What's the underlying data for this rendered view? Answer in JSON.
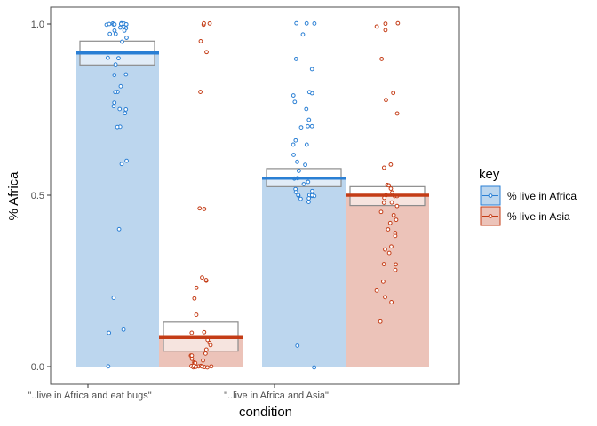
{
  "chart_data": {
    "type": "bar",
    "xlabel": "condition",
    "ylabel": "% Africa",
    "ylim": [
      0,
      1.03
    ],
    "yticks": [
      {
        "value": 0.0,
        "label": "0.0"
      },
      {
        "value": 0.5,
        "label": "0.5"
      },
      {
        "value": 1.0,
        "label": "1.0"
      }
    ],
    "categories": [
      "\"..live in Africa and eat bugs\"",
      "\"..live in Africa and Asia\""
    ],
    "legend": {
      "title": "key",
      "position": "right",
      "entries": [
        "% live in Africa",
        "% live in Asia"
      ]
    },
    "grid": false,
    "series": [
      {
        "name": "% live in Africa",
        "color": "#2a7fd4",
        "fill": "#bcd6ee",
        "values": [
          0.915,
          0.55
        ],
        "ci": [
          [
            0.88,
            0.95
          ],
          [
            0.525,
            0.578
          ]
        ],
        "points": [
          [
            1.0,
            1.0,
            1.0,
            1.0,
            1.0,
            1.0,
            1.0,
            1.0,
            1.0,
            1.0,
            1.0,
            1.0,
            1.0,
            0.99,
            0.99,
            0.98,
            0.98,
            0.97,
            0.97,
            0.96,
            0.95,
            0.9,
            0.9,
            0.88,
            0.85,
            0.85,
            0.82,
            0.8,
            0.8,
            0.77,
            0.76,
            0.75,
            0.75,
            0.74,
            0.7,
            0.7,
            0.6,
            0.59,
            0.4,
            0.2,
            0.11,
            0.1,
            0.0
          ],
          [
            1.0,
            1.0,
            1.0,
            0.97,
            0.9,
            0.87,
            0.8,
            0.8,
            0.79,
            0.77,
            0.75,
            0.72,
            0.7,
            0.7,
            0.7,
            0.66,
            0.65,
            0.65,
            0.62,
            0.6,
            0.59,
            0.57,
            0.55,
            0.55,
            0.54,
            0.53,
            0.52,
            0.51,
            0.51,
            0.5,
            0.5,
            0.5,
            0.5,
            0.5,
            0.5,
            0.5,
            0.49,
            0.49,
            0.48,
            0.06,
            0.0
          ]
        ]
      },
      {
        "name": "% live in Asia",
        "color": "#c43c16",
        "fill": "#ecc3b9",
        "values": [
          0.085,
          0.5
        ],
        "ci": [
          [
            0.045,
            0.13
          ],
          [
            0.47,
            0.525
          ]
        ],
        "points": [
          [
            1.0,
            1.0,
            1.0,
            0.95,
            0.92,
            0.8,
            0.46,
            0.46,
            0.26,
            0.25,
            0.25,
            0.23,
            0.2,
            0.15,
            0.1,
            0.1,
            0.08,
            0.07,
            0.06,
            0.05,
            0.04,
            0.03,
            0.03,
            0.02,
            0.02,
            0.01,
            0.01,
            0.01,
            0.0,
            0.0,
            0.0,
            0.0,
            0.0,
            0.0,
            0.0,
            0.0,
            0.0,
            0.0,
            0.0
          ],
          [
            1.0,
            1.0,
            0.99,
            0.98,
            0.9,
            0.8,
            0.78,
            0.74,
            0.59,
            0.58,
            0.53,
            0.53,
            0.52,
            0.51,
            0.5,
            0.5,
            0.5,
            0.49,
            0.48,
            0.48,
            0.47,
            0.45,
            0.44,
            0.43,
            0.42,
            0.4,
            0.39,
            0.38,
            0.35,
            0.34,
            0.33,
            0.3,
            0.3,
            0.28,
            0.25,
            0.22,
            0.2,
            0.19,
            0.13
          ]
        ]
      }
    ]
  }
}
